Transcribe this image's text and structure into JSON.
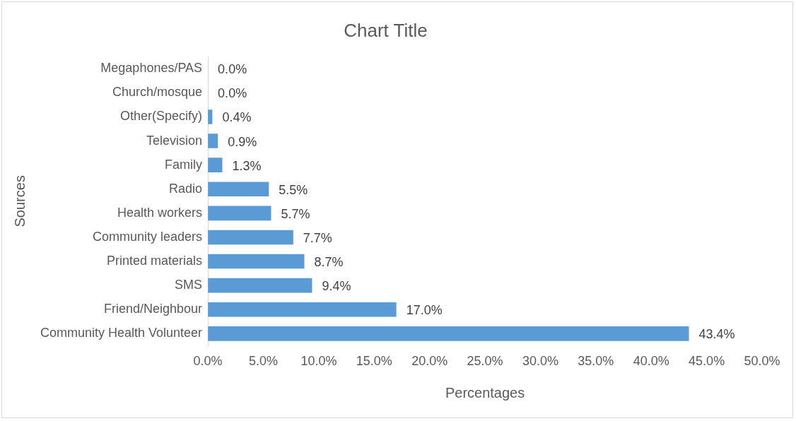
{
  "chart_data": {
    "type": "bar",
    "orientation": "horizontal",
    "title": "Chart Title",
    "xlabel": "Percentages",
    "ylabel": "Sources",
    "categories": [
      "Megaphones/PAS",
      "Church/mosque",
      "Other(Specify)",
      "Television",
      "Family",
      "Radio",
      "Health workers",
      "Community leaders",
      "Printed materials",
      "SMS",
      "Friend/Neighbour",
      "Community Health Volunteer"
    ],
    "values": [
      0.0,
      0.0,
      0.4,
      0.9,
      1.3,
      5.5,
      5.7,
      7.7,
      8.7,
      9.4,
      17.0,
      43.4
    ],
    "value_labels": [
      "0.0%",
      "0.0%",
      "0.4%",
      "0.9%",
      "1.3%",
      "5.5%",
      "5.7%",
      "7.7%",
      "8.7%",
      "9.4%",
      "17.0%",
      "43.4%"
    ],
    "color": "#5b9bd5",
    "xlim": [
      0,
      50
    ],
    "xticks": [
      {
        "value": 0,
        "label": "0.0%"
      },
      {
        "value": 5,
        "label": "5.0%"
      },
      {
        "value": 10,
        "label": "10.0%"
      },
      {
        "value": 15,
        "label": "15.0%"
      },
      {
        "value": 20,
        "label": "20.0%"
      },
      {
        "value": 25,
        "label": "25.0%"
      },
      {
        "value": 30,
        "label": "30.0%"
      },
      {
        "value": 35,
        "label": "35.0%"
      },
      {
        "value": 40,
        "label": "40.0%"
      },
      {
        "value": 45,
        "label": "45.0%"
      },
      {
        "value": 50,
        "label": "50.0%"
      }
    ]
  }
}
